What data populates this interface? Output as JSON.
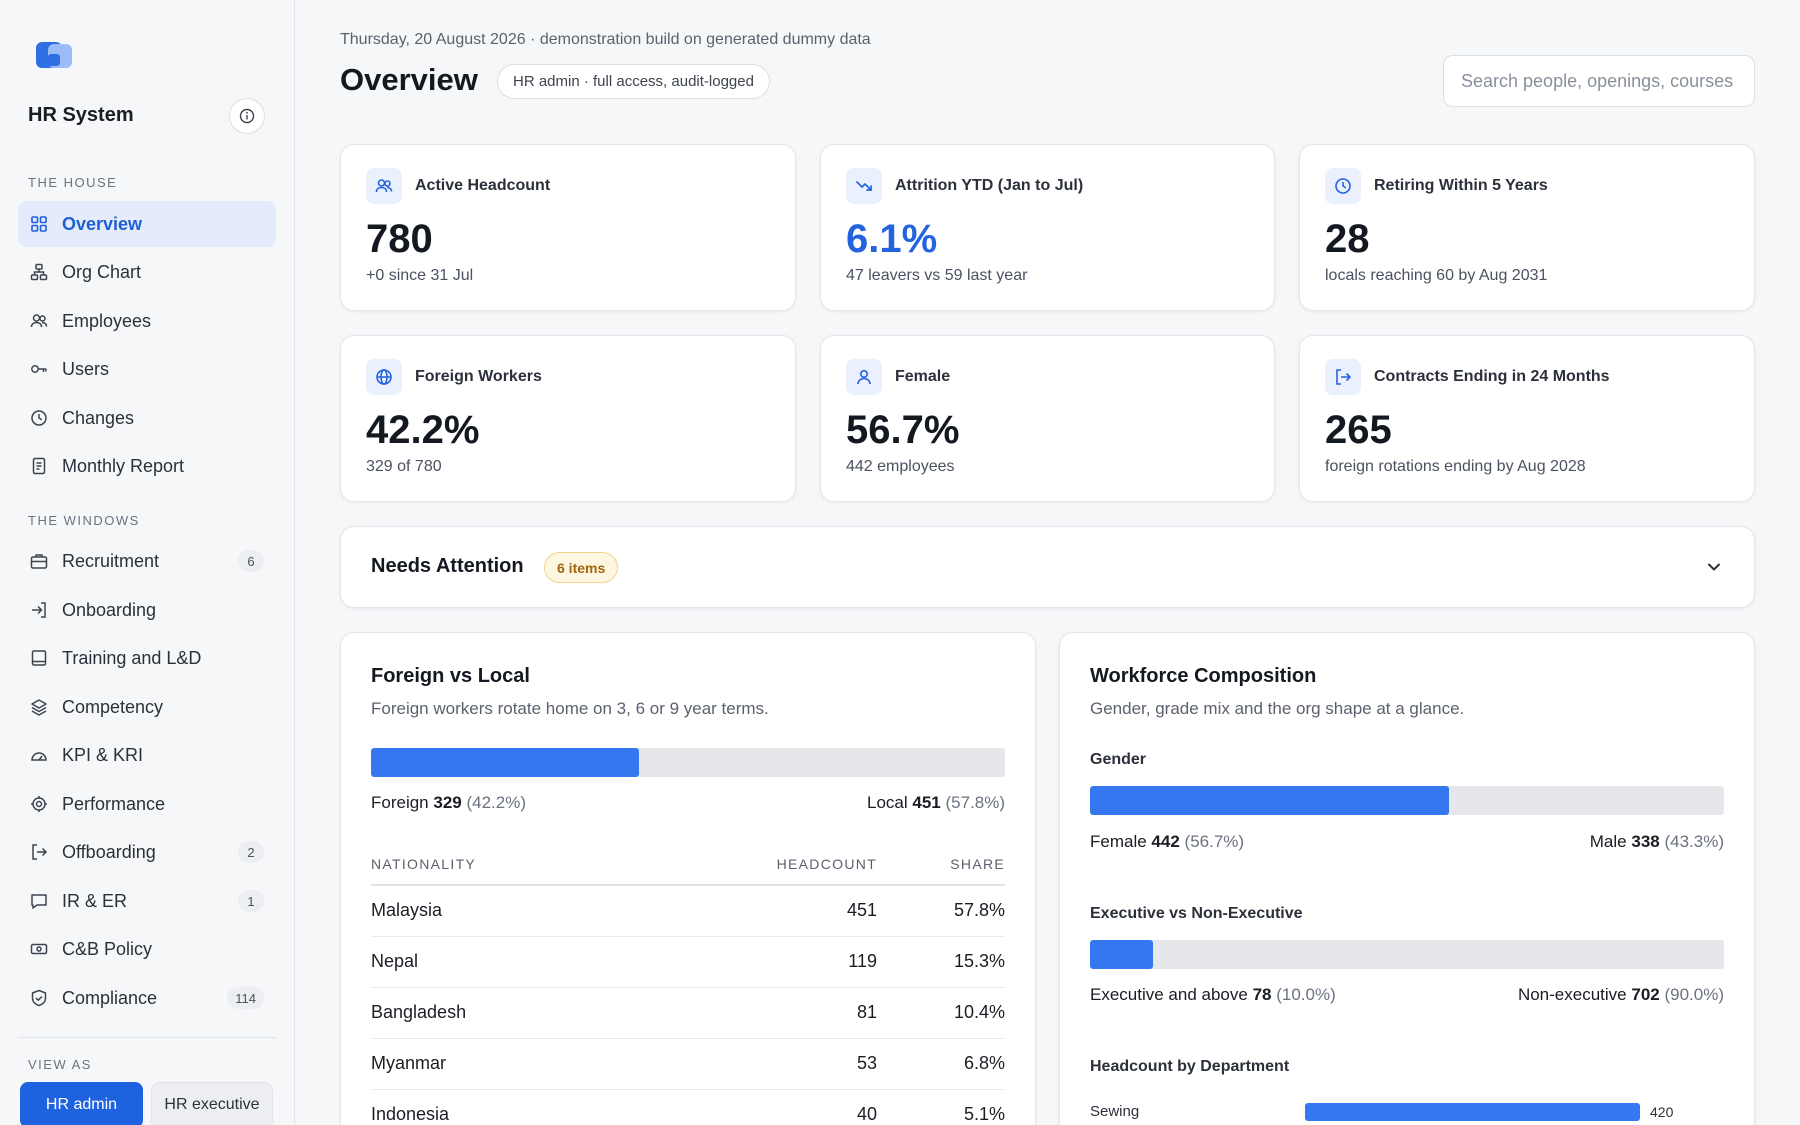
{
  "app": {
    "name": "HR System"
  },
  "sidebar": {
    "section_house": "THE HOUSE",
    "house_items": [
      {
        "label": "Overview",
        "icon": "grid-icon",
        "active": true
      },
      {
        "label": "Org Chart",
        "icon": "org-chart-icon"
      },
      {
        "label": "Employees",
        "icon": "people-icon"
      },
      {
        "label": "Users",
        "icon": "key-icon"
      },
      {
        "label": "Changes",
        "icon": "clock-icon"
      },
      {
        "label": "Monthly Report",
        "icon": "document-icon"
      }
    ],
    "section_windows": "THE WINDOWS",
    "window_items": [
      {
        "label": "Recruitment",
        "icon": "briefcase-icon",
        "badge": "6"
      },
      {
        "label": "Onboarding",
        "icon": "sign-in-icon"
      },
      {
        "label": "Training and L&D",
        "icon": "book-icon"
      },
      {
        "label": "Competency",
        "icon": "layers-icon"
      },
      {
        "label": "KPI & KRI",
        "icon": "gauge-icon"
      },
      {
        "label": "Performance",
        "icon": "target-icon"
      },
      {
        "label": "Offboarding",
        "icon": "sign-out-icon",
        "badge": "2"
      },
      {
        "label": "IR & ER",
        "icon": "chat-icon",
        "badge": "1"
      },
      {
        "label": "C&B Policy",
        "icon": "money-icon"
      },
      {
        "label": "Compliance",
        "icon": "shield-icon",
        "badge": "114"
      }
    ],
    "section_view_as": "VIEW AS",
    "view_as": {
      "active": "HR admin",
      "other": "HR executive"
    }
  },
  "header": {
    "date_line": "Thursday, 20 August 2026 · demonstration build on generated dummy data",
    "title": "Overview",
    "role_pill": "HR admin · full access, audit-logged",
    "search_placeholder": "Search people, openings, courses"
  },
  "kpis": [
    {
      "label": "Active Headcount",
      "value": "780",
      "sub": "+0 since 31 Jul",
      "icon": "people-icon"
    },
    {
      "label": "Attrition YTD (Jan to Jul)",
      "value": "6.1%",
      "sub": "47 leavers vs 59 last year",
      "icon": "trend-down-icon",
      "highlight": true
    },
    {
      "label": "Retiring Within 5 Years",
      "value": "28",
      "sub": "locals reaching 60 by Aug 2031",
      "icon": "clock-icon"
    },
    {
      "label": "Foreign Workers",
      "value": "42.2%",
      "sub": "329 of 780",
      "icon": "globe-icon"
    },
    {
      "label": "Female",
      "value": "56.7%",
      "sub": "442 employees",
      "icon": "person-icon"
    },
    {
      "label": "Contracts Ending in 24 Months",
      "value": "265",
      "sub": "foreign rotations ending by Aug 2028",
      "icon": "sign-out-icon"
    }
  ],
  "attention": {
    "title": "Needs Attention",
    "badge": "6 items"
  },
  "foreign_local": {
    "title": "Foreign vs Local",
    "subtitle": "Foreign workers rotate home on 3, 6 or 9 year terms.",
    "foreign_fraction": 0.422,
    "foreign_label": "Foreign",
    "foreign_count": "329",
    "foreign_pct": "(42.2%)",
    "local_label": "Local",
    "local_count": "451",
    "local_pct": "(57.8%)",
    "columns": [
      "NATIONALITY",
      "HEADCOUNT",
      "SHARE"
    ],
    "rows": [
      [
        "Malaysia",
        "451",
        "57.8%"
      ],
      [
        "Nepal",
        "119",
        "15.3%"
      ],
      [
        "Bangladesh",
        "81",
        "10.4%"
      ],
      [
        "Myanmar",
        "53",
        "6.8%"
      ],
      [
        "Indonesia",
        "40",
        "5.1%"
      ]
    ]
  },
  "composition": {
    "title": "Workforce Composition",
    "subtitle": "Gender, grade mix and the org shape at a glance.",
    "gender": {
      "heading": "Gender",
      "fraction": 0.567,
      "left_label": "Female",
      "left_count": "442",
      "left_pct": "(56.7%)",
      "right_label": "Male",
      "right_count": "338",
      "right_pct": "(43.3%)"
    },
    "grade": {
      "heading": "Executive vs Non-Executive",
      "fraction": 0.1,
      "left_label": "Executive and above",
      "left_count": "78",
      "left_pct": "(10.0%)",
      "right_label": "Non-executive",
      "right_count": "702",
      "right_pct": "(90.0%)"
    },
    "dept": {
      "heading": "Headcount by Department",
      "rows": [
        {
          "label": "Sewing",
          "value": "420",
          "fraction": 1.0
        }
      ]
    }
  },
  "colors": {
    "accent": "#2364de",
    "bar": "#3477ee",
    "track": "#e5e7eb",
    "badge_bg": "#fdf6e0"
  }
}
